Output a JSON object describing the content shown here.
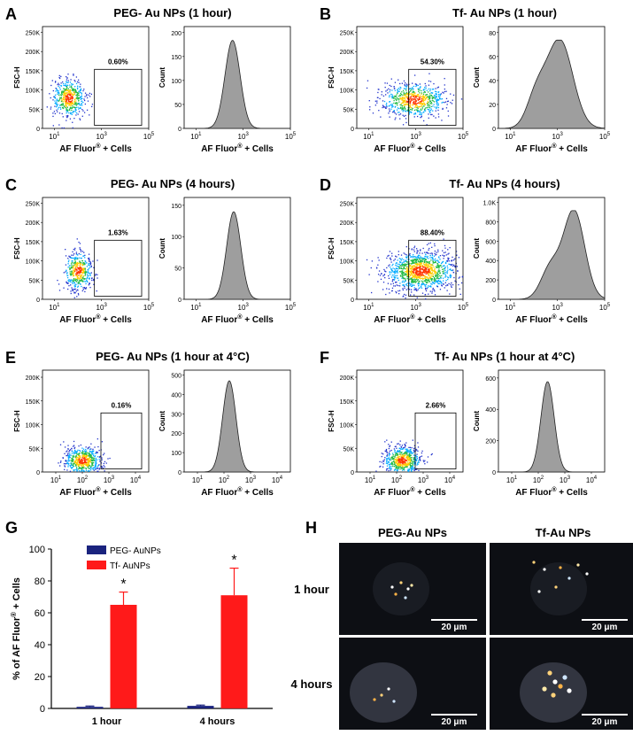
{
  "panels": [
    {
      "letter": "A",
      "title": "PEG- Au NPs (1 hour)",
      "scatter_ylabel": "FSC-H",
      "scatter_yticks": [
        "0",
        "50K",
        "100K",
        "150K",
        "200K",
        "250K"
      ],
      "scatter_xticks": [
        "10^1",
        "10^3",
        "10^5"
      ],
      "gate_label": "0.60%",
      "hist_ylabel": "Count",
      "hist_yticks": [
        "0",
        "50",
        "100",
        "150",
        "200"
      ],
      "hist_xticks": [
        "10^1",
        "10^3",
        "10^5"
      ],
      "xlabel_main": "AF Fluor",
      "xlabel_sup": "®",
      "xlabel_tail": " + Cells",
      "hist_peak_log": 2.55,
      "hist_width": 0.32,
      "hist_max": 200,
      "hist_ymax": 215,
      "pop": {
        "cx": 1.6,
        "cy": 80,
        "sx": 0.35,
        "sy": 25,
        "n": 500
      }
    },
    {
      "letter": "B",
      "title": "Tf- Au NPs (1 hour)",
      "scatter_ylabel": "FSC-H",
      "scatter_yticks": [
        "0",
        "50K",
        "100K",
        "150K",
        "200K",
        "250K"
      ],
      "scatter_xticks": [
        "10^1",
        "10^3",
        "10^5"
      ],
      "gate_label": "54.30%",
      "hist_ylabel": "Count",
      "hist_yticks": [
        "0",
        "20",
        "40",
        "60",
        "80"
      ],
      "hist_xticks": [
        "10^1",
        "10^3",
        "10^5"
      ],
      "xlabel_main": "AF Fluor",
      "xlabel_sup": "®",
      "xlabel_tail": " + Cells",
      "hist_peak_log": 3.1,
      "hist_width": 0.55,
      "hist_max": 82,
      "hist_ymax": 88,
      "pop": {
        "cx": 2.9,
        "cy": 75,
        "sx": 0.7,
        "sy": 22,
        "n": 700
      }
    },
    {
      "letter": "C",
      "title": "PEG- Au NPs (4 hours)",
      "scatter_ylabel": "FSC-H",
      "scatter_yticks": [
        "0",
        "50K",
        "100K",
        "150K",
        "200K",
        "250K"
      ],
      "scatter_xticks": [
        "10^1",
        "10^3",
        "10^5"
      ],
      "gate_label": "1.63%",
      "hist_ylabel": "Count",
      "hist_yticks": [
        "0",
        "50",
        "100",
        "150"
      ],
      "hist_xticks": [
        "10^1",
        "10^3",
        "10^5"
      ],
      "xlabel_main": "AF Fluor",
      "xlabel_sup": "®",
      "xlabel_tail": " + Cells",
      "hist_peak_log": 2.6,
      "hist_width": 0.3,
      "hist_max": 185,
      "hist_ymax": 200,
      "pop": {
        "cx": 2.0,
        "cy": 75,
        "sx": 0.3,
        "sy": 25,
        "n": 450
      }
    },
    {
      "letter": "D",
      "title": "Tf- Au NPs (4 hours)",
      "scatter_ylabel": "FSC-H",
      "scatter_yticks": [
        "0",
        "50K",
        "100K",
        "150K",
        "200K",
        "250K"
      ],
      "scatter_xticks": [
        "10^1",
        "10^3",
        "10^5"
      ],
      "gate_label": "88.40%",
      "hist_ylabel": "Count",
      "hist_yticks": [
        "0",
        "200",
        "400",
        "600",
        "800",
        "1.0K"
      ],
      "hist_xticks": [
        "10^1",
        "10^3",
        "10^5"
      ],
      "xlabel_main": "AF Fluor",
      "xlabel_sup": "®",
      "xlabel_tail": " + Cells",
      "hist_peak_log": 3.7,
      "hist_width": 0.45,
      "hist_max": 1030,
      "hist_ymax": 1100,
      "pop": {
        "cx": 3.2,
        "cy": 75,
        "sx": 0.75,
        "sy": 25,
        "n": 1200
      }
    },
    {
      "letter": "E",
      "title": "PEG- Au NPs (1 hour at 4°C)",
      "scatter_ylabel": "FSC-H",
      "scatter_yticks": [
        "0",
        "50K",
        "100K",
        "150K",
        "200K"
      ],
      "scatter_xticks": [
        "10^1",
        "10^2",
        "10^3",
        "10^4"
      ],
      "gate_label": "0.16%",
      "hist_ylabel": "Count",
      "hist_yticks": [
        "0",
        "100",
        "200",
        "300",
        "400",
        "500"
      ],
      "hist_xticks": [
        "10^1",
        "10^2",
        "10^3",
        "10^4"
      ],
      "xlabel_main": "AF Fluor",
      "xlabel_sup": "®",
      "xlabel_tail": " + Cells",
      "hist_peak_log": 2.2,
      "hist_width": 0.25,
      "hist_max": 540,
      "hist_ymax": 560,
      "pop": {
        "cx": 2.0,
        "cy": 25,
        "sx": 0.35,
        "sy": 15,
        "n": 600
      }
    },
    {
      "letter": "F",
      "title": "Tf- Au NPs (1 hour at 4°C)",
      "scatter_ylabel": "FSC-H",
      "scatter_yticks": [
        "0",
        "50K",
        "100K",
        "150K",
        "200K"
      ],
      "scatter_xticks": [
        "10^1",
        "10^2",
        "10^3",
        "10^4"
      ],
      "gate_label": "2.66%",
      "hist_ylabel": "Count",
      "hist_yticks": [
        "0",
        "200",
        "400",
        "600"
      ],
      "hist_xticks": [
        "10^1",
        "10^2",
        "10^3",
        "10^4"
      ],
      "xlabel_main": "AF Fluor",
      "xlabel_sup": "®",
      "xlabel_tail": " + Cells",
      "hist_peak_log": 2.35,
      "hist_width": 0.25,
      "hist_max": 630,
      "hist_ymax": 660,
      "pop": {
        "cx": 2.2,
        "cy": 25,
        "sx": 0.35,
        "sy": 15,
        "n": 600
      }
    }
  ],
  "chart_data": {
    "type": "bar",
    "letter": "G",
    "categories": [
      "1 hour",
      "4 hours"
    ],
    "series": [
      {
        "name": "PEG- AuNPs",
        "values": [
          1.0,
          1.6
        ],
        "errors": [
          0.5,
          0.5
        ],
        "color": "#1a237e"
      },
      {
        "name": "Tf- AuNPs",
        "values": [
          65,
          71
        ],
        "errors": [
          8,
          17
        ],
        "color": "#ff1a1a"
      }
    ],
    "ylabel_main": "% of AF Fluor",
    "ylabel_sup": "®",
    "ylabel_tail": " + Cells",
    "ylim": [
      0,
      100
    ],
    "yticks": [
      "0",
      "20",
      "40",
      "60",
      "80",
      "100"
    ],
    "significance": [
      "*",
      "*"
    ],
    "legend_position": "top-left"
  },
  "microscopy": {
    "letter": "H",
    "col_headers": [
      "PEG-Au NPs",
      "Tf-Au NPs"
    ],
    "row_headers": [
      "1 hour",
      "4 hours"
    ],
    "scale_bar": "20 μm"
  },
  "colors": {
    "hist_fill": "#9e9e9e",
    "peg_bar": "#1a237e",
    "tf_bar": "#ff1a1a"
  }
}
